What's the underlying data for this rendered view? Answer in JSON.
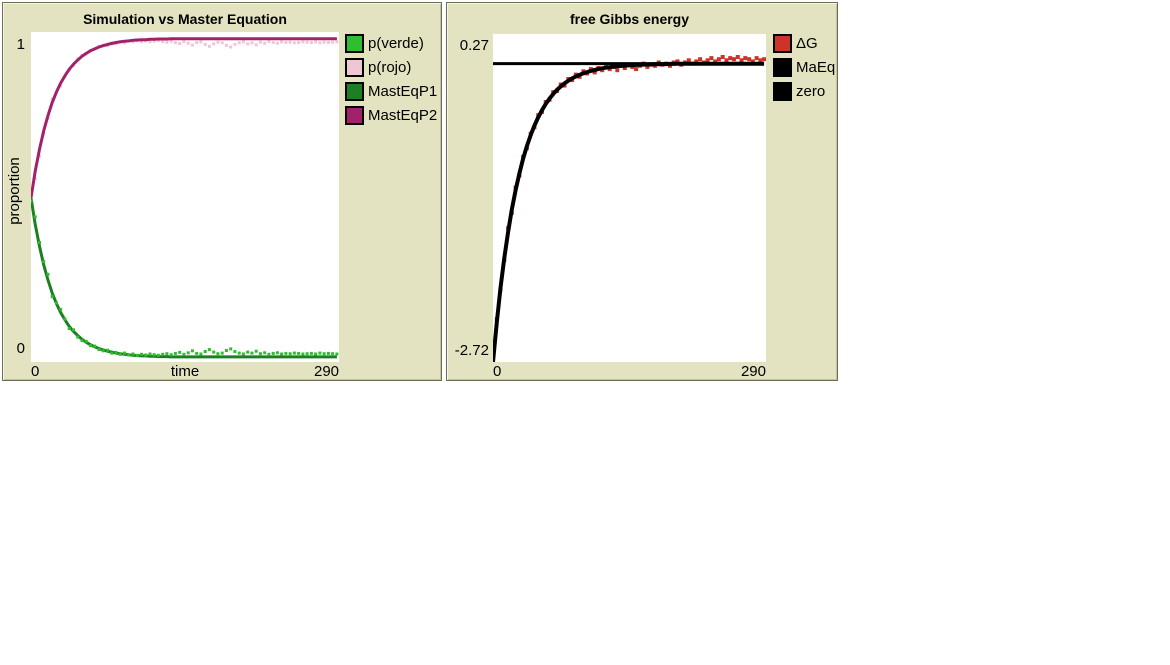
{
  "page": {
    "background_color": "#ffffff",
    "panel_color": "#e3e3c1"
  },
  "plots": [
    {
      "title": "Simulation vs Master Equation",
      "y_axis_title": "proportion",
      "y_max_label": "1",
      "y_min_label": "0",
      "x_min_label": "0",
      "x_axis_title": "time",
      "x_max_label": "290",
      "legend": [
        {
          "label": "p(verde)",
          "color": "#2ebe30"
        },
        {
          "label": "p(rojo)",
          "color": "#f0c6d2"
        },
        {
          "label": "MastEqP1",
          "color": "#1e7e22"
        },
        {
          "label": "MastEqP2",
          "color": "#a3206b"
        }
      ]
    },
    {
      "title": "free Gibbs energy",
      "y_max_label": "0.27",
      "y_min_label": "-2.72",
      "x_min_label": "0",
      "x_max_label": "290",
      "legend": [
        {
          "label": "ΔG",
          "color": "#ce332a"
        },
        {
          "label": "MaEq",
          "color": "#000000"
        },
        {
          "label": "zero",
          "color": "#000000"
        }
      ]
    }
  ],
  "chart_data": [
    {
      "type": "line",
      "title": "Simulation vs Master Equation",
      "xlabel": "time",
      "ylabel": "proportion",
      "xlim": [
        0,
        290
      ],
      "ylim": [
        0,
        1
      ],
      "ylim_draw": [
        -0.015,
        1.02
      ],
      "x_start": 0,
      "x_step": 4,
      "legend_position": "right",
      "grid": false,
      "series": [
        {
          "name": "p(rojo)",
          "color": "#f0c6d2",
          "style": "dots",
          "size": 3,
          "values": [
            0.51,
            0.56,
            0.63,
            0.7,
            0.75,
            0.81,
            0.83,
            0.85,
            0.88,
            0.9,
            0.915,
            0.936,
            0.947,
            0.951,
            0.962,
            0.966,
            0.975,
            0.979,
            0.977,
            0.986,
            0.984,
            0.99,
            0.986,
            0.992,
            0.989,
            0.993,
            0.99,
            0.992,
            0.989,
            0.991,
            0.993,
            0.99,
            0.988,
            0.991,
            0.987,
            0.984,
            0.99,
            0.985,
            0.979,
            0.987,
            0.989,
            0.981,
            0.975,
            0.983,
            0.988,
            0.986,
            0.978,
            0.973,
            0.981,
            0.986,
            0.989,
            0.983,
            0.986,
            0.98,
            0.988,
            0.985,
            0.99,
            0.987,
            0.985,
            0.989,
            0.987,
            0.988,
            0.986,
            0.987,
            0.989,
            0.988,
            0.987,
            0.989,
            0.986,
            0.988,
            0.987,
            0.988,
            0.989
          ]
        },
        {
          "name": "MastEqP2",
          "color": "#a3206b",
          "style": "line",
          "width": 3,
          "values": [
            0.5,
            0.583,
            0.652,
            0.71,
            0.758,
            0.799,
            0.832,
            0.86,
            0.883,
            0.903,
            0.919,
            0.932,
            0.944,
            0.953,
            0.961,
            0.967,
            0.973,
            0.977,
            0.981,
            0.984,
            0.987,
            0.989,
            0.991,
            0.992,
            0.994,
            0.995,
            0.996,
            0.996,
            0.997,
            0.997,
            0.998,
            0.998,
            0.998,
            0.999,
            0.999,
            0.999,
            0.999,
            0.999,
            0.999,
            0.999,
            0.999,
            0.999,
            0.999,
            0.999,
            0.999,
            0.999,
            0.999,
            0.999,
            0.999,
            0.999,
            0.999,
            0.999,
            0.999,
            0.999,
            0.999,
            0.999,
            0.999,
            0.999,
            0.999,
            0.999,
            0.999,
            0.999,
            0.999,
            0.999,
            0.999,
            0.999,
            0.999,
            0.999,
            0.999,
            0.999,
            0.999,
            0.999,
            0.999
          ]
        },
        {
          "name": "MastEqP1",
          "color": "#1e7e22",
          "style": "line",
          "width": 3,
          "values": [
            0.5,
            0.417,
            0.348,
            0.29,
            0.242,
            0.201,
            0.168,
            0.14,
            0.117,
            0.097,
            0.081,
            0.068,
            0.056,
            0.047,
            0.039,
            0.033,
            0.027,
            0.023,
            0.019,
            0.016,
            0.013,
            0.011,
            0.009,
            0.008,
            0.006,
            0.005,
            0.004,
            0.004,
            0.003,
            0.003,
            0.002,
            0.002,
            0.002,
            0.001,
            0.001,
            0.001,
            0.001,
            0.001,
            0.001,
            0.001,
            0.001,
            0.001,
            0.001,
            0.001,
            0.001,
            0.001,
            0.001,
            0.001,
            0.001,
            0.001,
            0.001,
            0.001,
            0.001,
            0.001,
            0.001,
            0.001,
            0.001,
            0.001,
            0.001,
            0.001,
            0.001,
            0.001,
            0.001,
            0.001,
            0.001,
            0.001,
            0.001,
            0.001,
            0.001,
            0.001,
            0.001,
            0.001,
            0.001
          ]
        },
        {
          "name": "p(verde)",
          "color": "#2ebe30",
          "style": "dots",
          "size": 3,
          "values": [
            0.49,
            0.44,
            0.36,
            0.3,
            0.26,
            0.19,
            0.17,
            0.15,
            0.12,
            0.09,
            0.086,
            0.063,
            0.052,
            0.05,
            0.036,
            0.035,
            0.024,
            0.02,
            0.022,
            0.013,
            0.015,
            0.009,
            0.013,
            0.007,
            0.01,
            0.006,
            0.009,
            0.007,
            0.01,
            0.008,
            0.006,
            0.009,
            0.011,
            0.008,
            0.012,
            0.015,
            0.009,
            0.014,
            0.02,
            0.012,
            0.01,
            0.018,
            0.024,
            0.016,
            0.011,
            0.013,
            0.021,
            0.026,
            0.018,
            0.013,
            0.01,
            0.016,
            0.013,
            0.019,
            0.011,
            0.014,
            0.009,
            0.012,
            0.014,
            0.01,
            0.012,
            0.011,
            0.013,
            0.012,
            0.01,
            0.011,
            0.012,
            0.01,
            0.013,
            0.011,
            0.012,
            0.011,
            0.01
          ]
        }
      ]
    },
    {
      "type": "line",
      "title": "free Gibbs energy",
      "xlabel": "",
      "ylabel": "",
      "xlim": [
        0,
        290
      ],
      "ylim": [
        -2.72,
        0.27
      ],
      "x_start": 0,
      "x_step": 4,
      "legend_position": "right",
      "grid": false,
      "series": [
        {
          "name": "ΔG",
          "color": "#ce332a",
          "style": "dots",
          "size": 4,
          "values": [
            -2.7,
            -2.33,
            -2.06,
            -1.79,
            -1.5,
            -1.36,
            -1.13,
            -1.02,
            -0.85,
            -0.77,
            -0.64,
            -0.58,
            -0.47,
            -0.44,
            -0.35,
            -0.33,
            -0.26,
            -0.25,
            -0.19,
            -0.2,
            -0.14,
            -0.15,
            -0.1,
            -0.12,
            -0.07,
            -0.09,
            -0.05,
            -0.08,
            -0.04,
            -0.06,
            -0.02,
            -0.05,
            -0.03,
            -0.06,
            -0.02,
            -0.04,
            -0.01,
            -0.03,
            -0.05,
            -0.02,
            0.0,
            -0.03,
            -0.01,
            -0.02,
            0.01,
            -0.01,
            0.0,
            -0.02,
            0.01,
            0.02,
            -0.01,
            0.01,
            0.03,
            0.0,
            0.02,
            0.04,
            0.01,
            0.03,
            0.05,
            0.02,
            0.04,
            0.06,
            0.03,
            0.05,
            0.04,
            0.06,
            0.03,
            0.05,
            0.04,
            0.02,
            0.05,
            0.03,
            0.04
          ]
        },
        {
          "name": "MaEq",
          "color": "#000000",
          "style": "line",
          "width": 4,
          "values": [
            -2.72,
            -2.358,
            -2.044,
            -1.772,
            -1.536,
            -1.331,
            -1.154,
            -1.001,
            -0.867,
            -0.752,
            -0.652,
            -0.565,
            -0.49,
            -0.425,
            -0.368,
            -0.319,
            -0.277,
            -0.24,
            -0.208,
            -0.18,
            -0.156,
            -0.135,
            -0.117,
            -0.102,
            -0.088,
            -0.077,
            -0.066,
            -0.058,
            -0.05,
            -0.043,
            -0.037,
            -0.033,
            -0.028,
            -0.024,
            -0.021,
            -0.018,
            -0.016,
            -0.014,
            -0.012,
            -0.01,
            -0.009,
            -0.008,
            -0.007,
            -0.006,
            -0.005,
            -0.004,
            -0.004,
            -0.003,
            -0.003,
            -0.002,
            -0.002,
            -0.002,
            -0.001,
            -0.001,
            -0.001,
            -0.001,
            -0.001,
            -0.001,
            -0.001,
            -0.001,
            -0.001,
            -0.001,
            -0.001,
            -0.001,
            -0.001,
            -0.001,
            -0.001,
            -0.001,
            -0.001,
            -0.001,
            -0.001,
            -0.001,
            -0.001
          ]
        },
        {
          "name": "zero",
          "color": "#000000",
          "style": "hline",
          "width": 3,
          "value": 0
        }
      ]
    }
  ]
}
